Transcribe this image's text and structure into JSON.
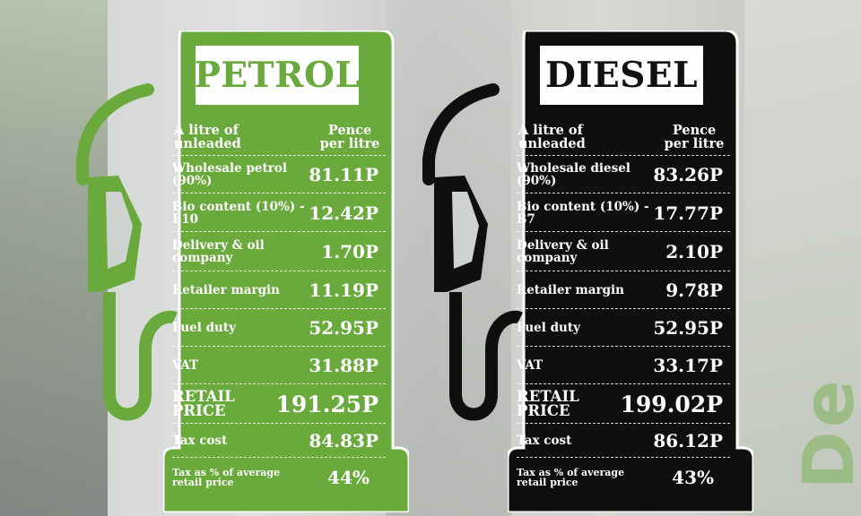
{
  "colors": {
    "petrol": "#6aaa3c",
    "diesel": "#0f0f0f",
    "text": "#ffffff"
  },
  "boards": [
    {
      "id": "petrol",
      "title": "PETROL",
      "col_left": "A litre of unleaded",
      "col_right": "Pence per litre",
      "rows": [
        {
          "label": "Wholesale petrol (90%)",
          "value": "81.11P"
        },
        {
          "label": "Bio content (10%) - E10",
          "value": "12.42P"
        },
        {
          "label": "Delivery & oil company",
          "value": "1.70P"
        },
        {
          "label": "Retailer margin",
          "value": "11.19P"
        },
        {
          "label": "Fuel duty",
          "value": "52.95P"
        },
        {
          "label": "VAT",
          "value": "31.88P"
        },
        {
          "label": "RETAIL PRICE",
          "value": "191.25P"
        },
        {
          "label": "Tax cost",
          "value": "84.83P"
        },
        {
          "label": "Tax as % of average retail price",
          "value": "44%"
        }
      ]
    },
    {
      "id": "diesel",
      "title": "DIESEL",
      "col_left": "A litre of unleaded",
      "col_right": "Pence per litre",
      "rows": [
        {
          "label": "Wholesale diesel (90%)",
          "value": "83.26P"
        },
        {
          "label": "Bio content (10%) - B7",
          "value": "17.77P"
        },
        {
          "label": "Delivery & oil company",
          "value": "2.10P"
        },
        {
          "label": "Retailer margin",
          "value": "9.78P"
        },
        {
          "label": "Fuel duty",
          "value": "52.95P"
        },
        {
          "label": "VAT",
          "value": "33.17P"
        },
        {
          "label": "RETAIL PRICE",
          "value": "199.02P"
        },
        {
          "label": "Tax cost",
          "value": "86.12P"
        },
        {
          "label": "Tax as % of average retail price",
          "value": "43%"
        }
      ]
    }
  ]
}
